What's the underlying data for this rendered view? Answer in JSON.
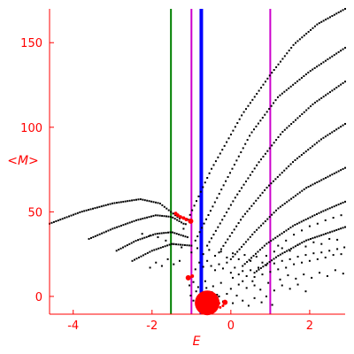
{
  "chart_data": {
    "type": "scatter",
    "title": "",
    "xlabel": "E",
    "ylabel": "<M>",
    "xlim": [
      -4.6,
      2.9
    ],
    "ylim": [
      -10.5,
      170
    ],
    "xticks": [
      -4,
      -2,
      0,
      2
    ],
    "xtick_labels": [
      "-4",
      "-2",
      "0",
      "2"
    ],
    "yticks": [
      0,
      50,
      100,
      150
    ],
    "ytick_labels": [
      "0",
      "50",
      "100",
      "150"
    ],
    "grid": false,
    "legend": "none",
    "axis_color": "#ff0000",
    "point_color": "#000000",
    "highlight_color": "#ff0000",
    "vertical_lines": [
      {
        "x": -1.52,
        "color": "#008000"
      },
      {
        "x": -1.0,
        "color": "#cc00cc"
      },
      {
        "x": -0.75,
        "color": "#0000ff"
      },
      {
        "x": 1.0,
        "color": "#cc00cc"
      }
    ],
    "curves": [
      {
        "x0": -4.6,
        "x1": -1.3,
        "points": [
          [
            -4.6,
            43
          ],
          [
            -3.8,
            50
          ],
          [
            -3.0,
            55
          ],
          [
            -2.3,
            57.5
          ],
          [
            -1.8,
            55
          ],
          [
            -1.3,
            46
          ]
        ]
      },
      {
        "x0": -3.6,
        "x1": -1.2,
        "points": [
          [
            -3.6,
            34
          ],
          [
            -3.0,
            40
          ],
          [
            -2.4,
            45
          ],
          [
            -1.9,
            48
          ],
          [
            -1.5,
            47
          ],
          [
            -1.2,
            43
          ]
        ]
      },
      {
        "x0": -2.9,
        "x1": -1.1,
        "points": [
          [
            -2.9,
            27
          ],
          [
            -2.4,
            33
          ],
          [
            -1.9,
            37
          ],
          [
            -1.5,
            38
          ],
          [
            -1.1,
            35
          ]
        ]
      },
      {
        "x0": -2.5,
        "x1": -1.0,
        "points": [
          [
            -2.5,
            21
          ],
          [
            -2.0,
            27
          ],
          [
            -1.5,
            31
          ],
          [
            -1.0,
            30
          ]
        ]
      },
      {
        "x0": -1.2,
        "x1": 2.9,
        "points": [
          [
            -1.2,
            40
          ],
          [
            -0.5,
            75
          ],
          [
            0.3,
            108
          ],
          [
            1.0,
            131
          ],
          [
            1.6,
            149
          ],
          [
            2.2,
            161
          ],
          [
            2.9,
            170
          ]
        ]
      },
      {
        "x0": -0.9,
        "x1": 2.9,
        "points": [
          [
            -0.9,
            33
          ],
          [
            -0.2,
            65
          ],
          [
            0.5,
            96
          ],
          [
            1.2,
            118
          ],
          [
            2.0,
            133
          ],
          [
            2.9,
            147
          ]
        ]
      },
      {
        "x0": -0.6,
        "x1": 2.9,
        "points": [
          [
            -0.6,
            30
          ],
          [
            0.1,
            58
          ],
          [
            0.7,
            79
          ],
          [
            1.3,
            97
          ],
          [
            2.1,
            114
          ],
          [
            2.9,
            127
          ]
        ]
      },
      {
        "x0": -0.3,
        "x1": 2.9,
        "points": [
          [
            -0.3,
            26
          ],
          [
            0.3,
            47
          ],
          [
            0.9,
            64
          ],
          [
            1.6,
            80
          ],
          [
            2.3,
            93
          ],
          [
            2.9,
            102
          ]
        ]
      },
      {
        "x0": 0.0,
        "x1": 2.9,
        "points": [
          [
            0.0,
            22
          ],
          [
            0.6,
            38
          ],
          [
            1.2,
            52
          ],
          [
            1.9,
            64
          ],
          [
            2.9,
            76
          ]
        ]
      },
      {
        "x0": 0.3,
        "x1": 2.9,
        "points": [
          [
            0.3,
            18
          ],
          [
            0.9,
            31
          ],
          [
            1.6,
            42
          ],
          [
            2.3,
            50
          ],
          [
            2.9,
            56
          ]
        ]
      },
      {
        "x0": 0.6,
        "x1": 2.9,
        "points": [
          [
            0.6,
            14
          ],
          [
            1.2,
            24
          ],
          [
            1.9,
            33
          ],
          [
            2.9,
            41
          ]
        ]
      }
    ],
    "highlight_points": [
      {
        "x": -1.02,
        "y": 44.5,
        "r": 3
      },
      {
        "x": -1.13,
        "y": 45.5,
        "r": 2
      },
      {
        "x": -1.2,
        "y": 46.3,
        "r": 2
      },
      {
        "x": -1.28,
        "y": 47.0,
        "r": 2
      },
      {
        "x": -1.35,
        "y": 48.0,
        "r": 2
      },
      {
        "x": -1.4,
        "y": 49.0,
        "r": 2
      },
      {
        "x": -1.08,
        "y": 11.0,
        "r": 3
      },
      {
        "x": -0.98,
        "y": 12.0,
        "r": 2
      },
      {
        "x": -0.15,
        "y": -3.5,
        "r": 3
      },
      {
        "x": -0.45,
        "y": -2.0,
        "r": 2
      },
      {
        "x": -0.4,
        "y": -1.5,
        "r": 1.5
      },
      {
        "x": -0.3,
        "y": -4.0,
        "r": 1.5
      },
      {
        "x": -0.2,
        "y": -5.5,
        "r": 1.5
      },
      {
        "x": -0.27,
        "y": -6.5,
        "r": 1.5
      },
      {
        "x": -0.6,
        "y": -3.8,
        "r": 14
      }
    ],
    "scatter_points": [
      [
        -1.02,
        0.5
      ],
      [
        -0.95,
        -2.5
      ],
      [
        -0.88,
        3.0
      ],
      [
        -0.82,
        -4.0
      ],
      [
        -0.7,
        1.5
      ],
      [
        -0.58,
        -3.0
      ],
      [
        -0.48,
        2.5
      ],
      [
        -0.42,
        -5.0
      ],
      [
        -0.3,
        0.0
      ],
      [
        -0.2,
        -3.0
      ],
      [
        -0.1,
        1.5
      ],
      [
        0.05,
        -4.0
      ],
      [
        0.15,
        0.5
      ],
      [
        0.3,
        -2.5
      ],
      [
        0.45,
        -5.5
      ],
      [
        0.6,
        -1.0
      ],
      [
        0.78,
        -3.5
      ],
      [
        0.9,
        0.0
      ],
      [
        1.05,
        -5.0
      ],
      [
        -1.05,
        6.5
      ],
      [
        -0.95,
        8.5
      ],
      [
        -0.83,
        5.5
      ],
      [
        -0.65,
        9.0
      ],
      [
        -0.45,
        6.0
      ],
      [
        -0.25,
        8.0
      ],
      [
        0.0,
        4.5
      ],
      [
        0.2,
        7.0
      ],
      [
        0.4,
        5.0
      ],
      [
        0.55,
        9.0
      ],
      [
        0.75,
        4.0
      ],
      [
        0.95,
        8.0
      ],
      [
        1.1,
        3.5
      ],
      [
        1.3,
        6.5
      ],
      [
        1.5,
        4.5
      ],
      [
        1.7,
        7.0
      ],
      [
        1.9,
        3.0
      ],
      [
        -0.9,
        16.0
      ],
      [
        -0.8,
        20.0
      ],
      [
        -0.7,
        17.5
      ],
      [
        -0.6,
        21.0
      ],
      [
        -0.5,
        18.0
      ],
      [
        -0.4,
        15.5
      ],
      [
        -0.3,
        19.0
      ],
      [
        -0.2,
        16.5
      ],
      [
        -0.1,
        20.0
      ],
      [
        0.0,
        14.0
      ],
      [
        0.1,
        17.0
      ],
      [
        0.2,
        13.0
      ],
      [
        0.3,
        15.0
      ],
      [
        0.4,
        12.0
      ],
      [
        0.5,
        15.5
      ],
      [
        0.6,
        11.5
      ],
      [
        0.7,
        17.0
      ],
      [
        0.8,
        13.0
      ],
      [
        0.9,
        18.5
      ],
      [
        1.0,
        14.5
      ],
      [
        1.1,
        19.5
      ],
      [
        1.2,
        16.0
      ],
      [
        1.3,
        21.0
      ],
      [
        1.4,
        17.0
      ],
      [
        1.5,
        22.0
      ],
      [
        1.6,
        19.0
      ],
      [
        1.7,
        23.5
      ],
      [
        1.8,
        20.0
      ],
      [
        1.9,
        24.5
      ],
      [
        2.0,
        21.0
      ],
      [
        2.1,
        25.5
      ],
      [
        2.2,
        22.0
      ],
      [
        2.3,
        26.0
      ],
      [
        2.4,
        23.0
      ],
      [
        2.5,
        27.0
      ],
      [
        2.6,
        24.5
      ],
      [
        2.7,
        28.0
      ],
      [
        2.8,
        25.0
      ],
      [
        2.88,
        29.0
      ],
      [
        1.2,
        30.0
      ],
      [
        1.4,
        33.0
      ],
      [
        1.6,
        36.5
      ],
      [
        1.8,
        39.0
      ],
      [
        2.0,
        41.5
      ],
      [
        2.2,
        43.0
      ],
      [
        2.4,
        45.0
      ],
      [
        2.6,
        46.5
      ],
      [
        2.8,
        48.0
      ],
      [
        0.9,
        24.0
      ],
      [
        1.1,
        26.5
      ],
      [
        1.3,
        28.5
      ],
      [
        1.5,
        27.0
      ],
      [
        1.7,
        30.5
      ],
      [
        1.9,
        29.5
      ],
      [
        2.1,
        32.0
      ],
      [
        2.3,
        31.0
      ],
      [
        2.5,
        34.0
      ],
      [
        2.7,
        33.5
      ],
      [
        -1.0,
        26.0
      ],
      [
        -0.85,
        28.5
      ],
      [
        -0.7,
        25.0
      ],
      [
        -0.55,
        27.5
      ],
      [
        -0.4,
        24.0
      ],
      [
        -0.25,
        26.5
      ],
      [
        -0.1,
        23.0
      ],
      [
        0.05,
        25.5
      ],
      [
        0.2,
        22.0
      ],
      [
        0.35,
        24.5
      ],
      [
        0.5,
        21.0
      ],
      [
        0.65,
        23.5
      ],
      [
        0.8,
        20.0
      ],
      [
        -1.3,
        21.0
      ],
      [
        -1.45,
        19.0
      ],
      [
        -1.6,
        22.0
      ],
      [
        -1.75,
        18.0
      ],
      [
        -1.9,
        20.0
      ],
      [
        -2.05,
        17.0
      ],
      [
        -1.25,
        29.0
      ],
      [
        -1.45,
        31.0
      ],
      [
        -1.65,
        33.0
      ],
      [
        -1.85,
        35.0
      ],
      [
        -2.05,
        36.0
      ],
      [
        -2.25,
        37.0
      ],
      [
        -0.35,
        1.0
      ],
      [
        -0.62,
        5.0
      ],
      [
        0.05,
        11.0
      ],
      [
        0.3,
        9.0
      ],
      [
        0.6,
        6.5
      ],
      [
        1.25,
        10.0
      ],
      [
        1.45,
        12.5
      ],
      [
        1.65,
        10.5
      ],
      [
        1.85,
        13.0
      ],
      [
        2.05,
        11.0
      ],
      [
        2.25,
        14.0
      ],
      [
        2.45,
        12.0
      ],
      [
        2.65,
        15.5
      ],
      [
        2.85,
        13.5
      ]
    ]
  }
}
